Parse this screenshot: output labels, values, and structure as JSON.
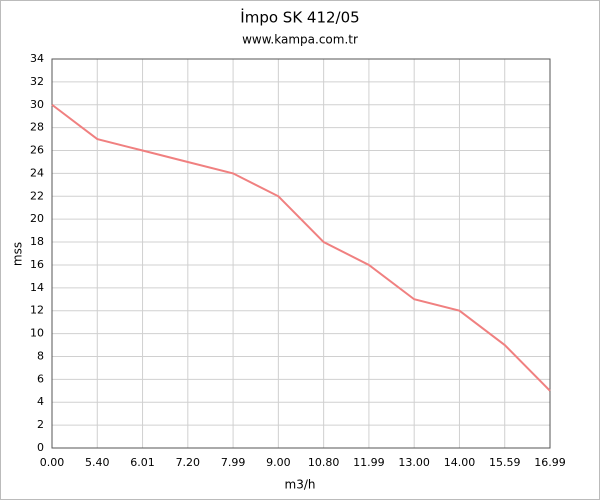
{
  "chart_data": {
    "type": "line",
    "title": "İmpo SK 412/05",
    "subtitle": "www.kampa.com.tr",
    "x_label": "m3/h",
    "y_label": "mss",
    "categories": [
      "0.00",
      "5.40",
      "6.01",
      "7.20",
      "7.99",
      "9.00",
      "10.80",
      "11.99",
      "13.00",
      "14.00",
      "15.59",
      "16.99"
    ],
    "values": [
      30,
      27,
      26,
      25,
      24,
      22,
      18,
      16,
      13,
      12,
      9,
      5
    ],
    "color": "#f08080",
    "ylim": [
      0,
      34
    ],
    "yticks": [
      0,
      2,
      4,
      6,
      8,
      10,
      12,
      14,
      16,
      18,
      20,
      22,
      24,
      26,
      28,
      30,
      32,
      34
    ],
    "grid": true
  }
}
